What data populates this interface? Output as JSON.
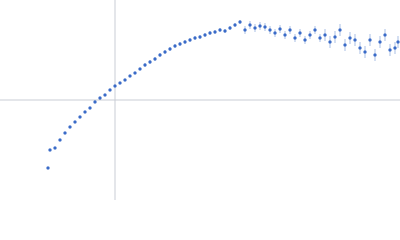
{
  "chart_data": {
    "type": "scatter",
    "x": [
      -0.67,
      -0.65,
      -0.6,
      -0.55,
      -0.5,
      -0.45,
      -0.4,
      -0.35,
      -0.3,
      -0.25,
      -0.2,
      -0.15,
      -0.1,
      -0.05,
      0,
      0.05,
      0.1,
      0.15,
      0.2,
      0.25,
      0.3,
      0.35,
      0.4,
      0.45,
      0.5,
      0.55,
      0.6,
      0.65,
      0.7,
      0.75,
      0.8,
      0.85,
      0.9,
      0.95,
      1.0,
      1.05,
      1.1,
      1.15,
      1.2,
      1.25,
      1.3,
      1.35,
      1.4,
      1.45,
      1.5,
      1.55,
      1.6,
      1.65,
      1.7,
      1.75,
      1.8,
      1.85,
      1.9,
      1.95,
      2.0,
      2.05,
      2.1,
      2.15,
      2.2,
      2.25,
      2.3,
      2.35,
      2.4,
      2.45,
      2.5,
      2.55,
      2.6,
      2.65,
      2.7,
      2.75,
      2.8,
      2.83
    ],
    "values": [
      -0.68,
      -0.5,
      -0.48,
      -0.4,
      -0.33,
      -0.27,
      -0.22,
      -0.17,
      -0.12,
      -0.08,
      -0.02,
      0.02,
      0.05,
      0.1,
      0.14,
      0.17,
      0.2,
      0.24,
      0.27,
      0.31,
      0.35,
      0.38,
      0.41,
      0.45,
      0.48,
      0.51,
      0.54,
      0.56,
      0.58,
      0.6,
      0.62,
      0.63,
      0.65,
      0.67,
      0.68,
      0.7,
      0.69,
      0.72,
      0.75,
      0.78,
      0.7,
      0.75,
      0.72,
      0.74,
      0.73,
      0.7,
      0.67,
      0.71,
      0.65,
      0.7,
      0.62,
      0.67,
      0.6,
      0.65,
      0.7,
      0.62,
      0.65,
      0.58,
      0.63,
      0.7,
      0.55,
      0.62,
      0.6,
      0.52,
      0.48,
      0.6,
      0.45,
      0.58,
      0.65,
      0.5,
      0.52,
      0.58
    ],
    "errors": [
      0.01,
      0.01,
      0.01,
      0.01,
      0.01,
      0.01,
      0.01,
      0.01,
      0.01,
      0.01,
      0.01,
      0.01,
      0.01,
      0.01,
      0.01,
      0.01,
      0.01,
      0.01,
      0.01,
      0.01,
      0.02,
      0.02,
      0.02,
      0.02,
      0.02,
      0.02,
      0.02,
      0.02,
      0.02,
      0.02,
      0.02,
      0.02,
      0.02,
      0.02,
      0.02,
      0.02,
      0.02,
      0.02,
      0.02,
      0.02,
      0.04,
      0.04,
      0.04,
      0.04,
      0.04,
      0.04,
      0.04,
      0.04,
      0.04,
      0.04,
      0.04,
      0.04,
      0.04,
      0.04,
      0.04,
      0.04,
      0.06,
      0.06,
      0.06,
      0.06,
      0.06,
      0.06,
      0.06,
      0.06,
      0.06,
      0.06,
      0.06,
      0.06,
      0.06,
      0.06,
      0.06,
      0.06
    ],
    "color": "#3a6bc8",
    "error_color": "#a9bfe6",
    "xlim": [
      -1.15,
      2.85
    ],
    "ylim": [
      -1,
      1
    ]
  }
}
